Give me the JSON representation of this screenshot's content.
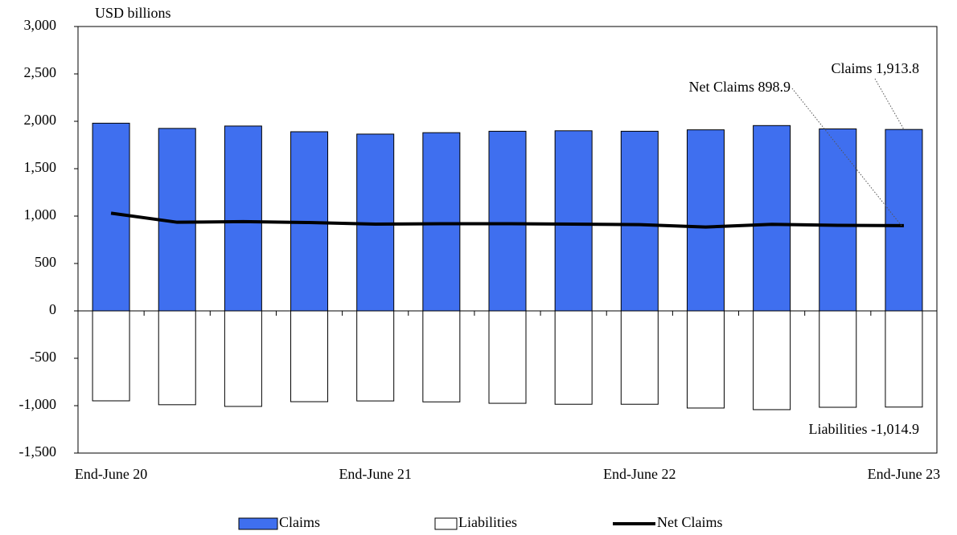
{
  "chart_data": {
    "type": "bar",
    "ylabel": "USD billions",
    "categories": [
      "End-June 20",
      null,
      null,
      null,
      "End-June 21",
      null,
      null,
      null,
      "End-June 22",
      null,
      null,
      null,
      "End-June 23"
    ],
    "series": [
      {
        "name": "Claims",
        "type": "bar",
        "color": "#3f6fef",
        "values": [
          1980,
          1925,
          1950,
          1890,
          1865,
          1880,
          1895,
          1900,
          1895,
          1910,
          1955,
          1920,
          1913.8
        ]
      },
      {
        "name": "Liabilities",
        "type": "bar",
        "color": "#ffffff",
        "values": [
          -949,
          -990,
          -1008,
          -958,
          -950,
          -960,
          -975,
          -985,
          -985,
          -1025,
          -1042,
          -1017,
          -1014.9
        ]
      },
      {
        "name": "Net Claims",
        "type": "line",
        "color": "#000000",
        "values": [
          1031,
          935,
          942,
          932,
          915,
          920,
          920,
          915,
          910,
          885,
          913,
          903,
          898.9
        ]
      }
    ],
    "annotations": [
      {
        "text": "Claims 1,913.8",
        "series": 0,
        "color": "#000000"
      },
      {
        "text": "Net Claims 898.9",
        "series": 2,
        "color": "#000000"
      },
      {
        "text": "Liabilities -1,014.9",
        "series": 1,
        "color": "#ff0000"
      }
    ],
    "ylim": [
      -1500,
      3000
    ],
    "yticks": [
      {
        "value": -1500,
        "label": "-1,500"
      },
      {
        "value": -1000,
        "label": "-1,000"
      },
      -500,
      0,
      500,
      {
        "value": 1000,
        "label": "1,000"
      },
      {
        "value": 1500,
        "label": "1,500"
      },
      {
        "value": 2000,
        "label": "2,000"
      },
      {
        "value": 2500,
        "label": "2,500"
      },
      {
        "value": 3000,
        "label": "3,000"
      }
    ],
    "grid": false,
    "legend": "bottom"
  }
}
